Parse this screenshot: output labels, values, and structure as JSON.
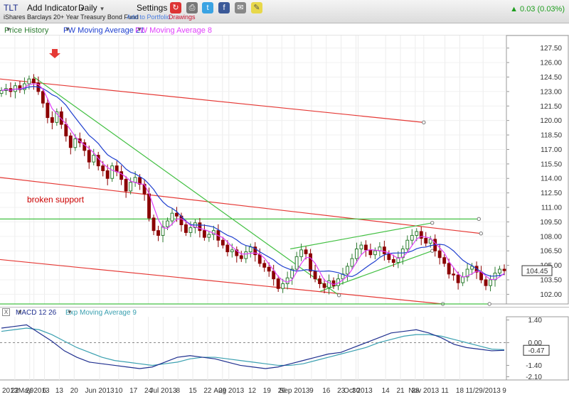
{
  "toolbar": {
    "symbol": "TLT",
    "add_indicator": "Add Indicator",
    "period": "Daily",
    "settings": "Settings",
    "fund_name": "iShares Barclays 20+ Year Treasury Bond Fund",
    "add_portfolio": "Add to Portfolio",
    "drawings": "Drawings",
    "change": "0.03 (0.03%)",
    "icons": [
      "share-icon",
      "print-icon",
      "twitter-icon",
      "facebook-icon",
      "email-icon",
      "note-icon"
    ]
  },
  "legend": {
    "price_history": "Price History",
    "ma21": "FW Moving Average 21",
    "ma8": "FW Moving Average 8"
  },
  "macd_legend": {
    "close": "X",
    "macd": "MACD 12 26",
    "ema": "Exp Moving Average 9"
  },
  "colors": {
    "up": "#2e7d32",
    "down": "#8b0000",
    "ma21": "#1f3fcf",
    "ma8": "#e040fb",
    "trend_red": "#e53935",
    "trend_green": "#43c043",
    "macd_line": "#1f2f8f",
    "signal_line": "#3aa0b0"
  },
  "chart_data": [
    {
      "type": "candlestick",
      "title": "",
      "ylim": [
        101.0,
        128.8
      ],
      "y_ticks": [
        "127.50",
        "126.00",
        "124.50",
        "123.00",
        "121.50",
        "120.00",
        "118.50",
        "117.00",
        "115.50",
        "114.00",
        "112.50",
        "111.00",
        "109.50",
        "108.00",
        "106.50",
        "105.00",
        "103.50",
        "102.00"
      ],
      "last_price": "104.45",
      "x_ticks": [
        "2013",
        "22",
        "29",
        "May 2013",
        "6",
        "13",
        "20",
        "Jun 2013",
        "10",
        "17",
        "24",
        "Jul 2013",
        "8",
        "15",
        "22",
        "29",
        "Aug 2013",
        "12",
        "19",
        "26",
        "Sep 2013",
        "9",
        "16",
        "23",
        "30",
        "Oct 2013",
        "14",
        "21",
        "28",
        "Nov 2013",
        "11",
        "18",
        "11/29/2013",
        "9"
      ],
      "annotation": "broken support",
      "closes": [
        123.1,
        123.3,
        123.0,
        123.6,
        123.2,
        123.8,
        124.3,
        123.9,
        123.0,
        121.8,
        120.3,
        119.8,
        120.9,
        119.6,
        118.4,
        117.2,
        118.1,
        117.7,
        116.9,
        115.7,
        116.4,
        115.3,
        114.8,
        114.0,
        115.3,
        114.7,
        113.9,
        112.7,
        113.6,
        114.1,
        113.4,
        112.4,
        109.9,
        108.6,
        108.1,
        109.0,
        109.6,
        110.4,
        110.1,
        109.2,
        108.4,
        108.9,
        109.4,
        108.6,
        107.9,
        108.2,
        108.6,
        107.6,
        107.1,
        106.4,
        106.6,
        106.0,
        105.7,
        106.4,
        106.9,
        106.1,
        105.2,
        104.8,
        104.4,
        103.6,
        102.6,
        103.1,
        103.7,
        104.6,
        105.9,
        106.6,
        106.2,
        104.4,
        103.6,
        103.1,
        102.7,
        103.4,
        102.9,
        103.6,
        104.1,
        104.9,
        105.7,
        106.7,
        107.1,
        106.6,
        106.1,
        106.5,
        106.9,
        106.2,
        105.6,
        105.3,
        105.8,
        106.7,
        107.6,
        108.1,
        108.5,
        107.8,
        107.3,
        107.7,
        106.5,
        105.8,
        105.2,
        104.1,
        104.0,
        103.2,
        103.8,
        104.6,
        104.9,
        104.3,
        103.5,
        102.9,
        103.5,
        104.2,
        104.6,
        104.45
      ],
      "trendlines": [
        {
          "color": "red",
          "from": [
            "2013-04-15",
            124.3
          ],
          "to": [
            "2013-11-01",
            119.8
          ]
        },
        {
          "color": "red",
          "from": [
            "2013-04-15",
            114.1
          ],
          "to": [
            "2013-11-28",
            108.3
          ]
        },
        {
          "color": "red",
          "from": [
            "2013-04-15",
            105.6
          ],
          "to": [
            "2013-11-10",
            101.0
          ]
        },
        {
          "color": "green",
          "from": [
            "2013-05-01",
            124.5
          ],
          "to": [
            "2013-09-22",
            101.9
          ]
        },
        {
          "color": "green",
          "from": [
            "2013-04-15",
            109.8
          ],
          "to": [
            "2013-11-27",
            109.8
          ]
        },
        {
          "color": "green",
          "from": [
            "2013-08-30",
            106.7
          ],
          "to": [
            "2013-11-05",
            109.4
          ]
        },
        {
          "color": "green",
          "from": [
            "2013-09-13",
            102.3
          ],
          "to": [
            "2013-11-05",
            106.5
          ]
        },
        {
          "color": "green",
          "from": [
            "2013-04-15",
            101.0
          ],
          "to": [
            "2013-12-02",
            101.0
          ]
        }
      ]
    },
    {
      "type": "line",
      "title": "",
      "ylim": [
        -2.3,
        1.6
      ],
      "y_ticks": [
        "1.40",
        "0.00",
        "-1.40",
        "-2.10"
      ],
      "last_value": "-0.47",
      "series": [
        {
          "name": "MACD 12 26",
          "values": [
            0.9,
            1.0,
            1.1,
            0.6,
            0.1,
            -0.5,
            -0.9,
            -1.2,
            -1.3,
            -1.4,
            -1.5,
            -1.6,
            -1.5,
            -1.2,
            -0.9,
            -0.8,
            -0.9,
            -1.0,
            -1.2,
            -1.4,
            -1.5,
            -1.6,
            -1.5,
            -1.3,
            -1.1,
            -0.9,
            -0.7,
            -0.6,
            -0.3,
            0.0,
            0.3,
            0.6,
            0.7,
            0.8,
            0.6,
            0.3,
            -0.1,
            -0.3,
            -0.4,
            -0.5,
            -0.47
          ]
        },
        {
          "name": "Exp Moving Average 9",
          "values": [
            0.7,
            0.8,
            0.9,
            0.8,
            0.5,
            0.1,
            -0.3,
            -0.6,
            -0.9,
            -1.1,
            -1.2,
            -1.3,
            -1.4,
            -1.3,
            -1.2,
            -1.0,
            -0.9,
            -0.9,
            -1.0,
            -1.1,
            -1.2,
            -1.3,
            -1.4,
            -1.4,
            -1.3,
            -1.1,
            -0.9,
            -0.7,
            -0.5,
            -0.3,
            0.0,
            0.2,
            0.4,
            0.5,
            0.5,
            0.4,
            0.2,
            0.0,
            -0.2,
            -0.4,
            -0.43
          ]
        }
      ]
    }
  ]
}
